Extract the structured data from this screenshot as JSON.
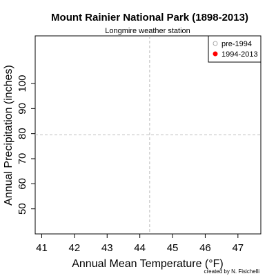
{
  "chart_data": {
    "type": "scatter",
    "title": "Mount Rainier National Park (1898-2013)",
    "subtitle": "Longmire weather station",
    "xlabel": "Annual Mean Temperature (°F)",
    "ylabel": "Annual Precipitation (inches)",
    "xlim": [
      40.8,
      47.7
    ],
    "ylim": [
      40,
      119
    ],
    "x_ticks": [
      41,
      42,
      43,
      44,
      45,
      46,
      47
    ],
    "y_ticks": [
      50,
      60,
      70,
      80,
      90,
      100
    ],
    "grid": false,
    "reference_lines": {
      "vertical_x": 44.3,
      "horizontal_y": 79.5
    },
    "legend": {
      "placement": "top-right",
      "entries": [
        {
          "label": "pre-1994",
          "color": "#aaaaaa",
          "filled": false
        },
        {
          "label": "1994-2013",
          "color": "#ff0000",
          "filled": true
        }
      ]
    },
    "series": [
      {
        "name": "pre-1994",
        "points": []
      },
      {
        "name": "1994-2013",
        "points": []
      }
    ],
    "credit": "created by N. Fisichelli"
  }
}
